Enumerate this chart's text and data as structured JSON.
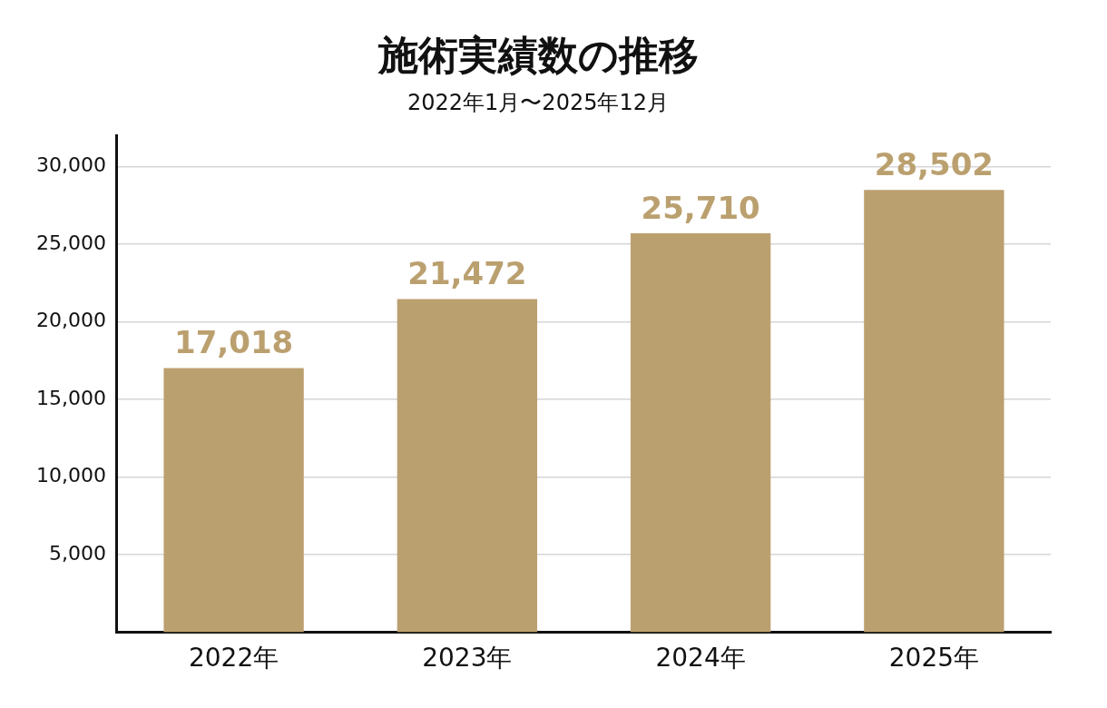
{
  "chart_data": {
    "type": "bar",
    "title": "施術実績数の推移",
    "subtitle": "2022年1月〜2025年12月",
    "categories": [
      "2022年",
      "2023年",
      "2024年",
      "2025年"
    ],
    "values": [
      17018,
      21472,
      25710,
      28502
    ],
    "color": "#bba06f",
    "ylim": [
      0,
      32000
    ],
    "yticks": [
      {
        "value": 5000,
        "label": "5,000"
      },
      {
        "value": 10000,
        "label": "10,000"
      },
      {
        "value": 15000,
        "label": "15,000"
      },
      {
        "value": 20000,
        "label": "20,000"
      },
      {
        "value": 25000,
        "label": "25,000"
      },
      {
        "value": 30000,
        "label": "30,000"
      }
    ],
    "value_labels": [
      "17,018",
      "21,472",
      "25,710",
      "28,502"
    ],
    "grid": "y",
    "legend": false
  }
}
